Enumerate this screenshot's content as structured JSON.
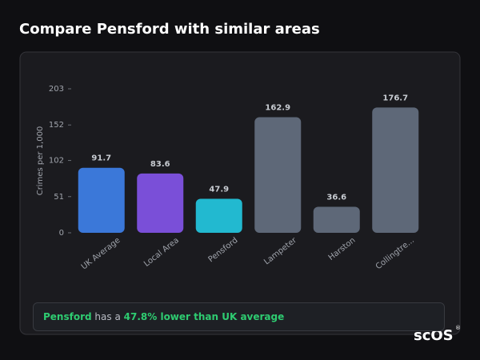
{
  "header": {
    "title": "Compare Pensford with similar areas"
  },
  "chart_data": {
    "type": "bar",
    "y_label": "Crimes per 1,000",
    "categories": [
      "UK Average",
      "Local Area",
      "Pensford",
      "Lampeter",
      "Harston",
      "Collingtre..."
    ],
    "values": [
      91.7,
      83.6,
      47.9,
      162.9,
      36.6,
      176.7
    ],
    "colors": [
      "#3b78d9",
      "#7a4fd8",
      "#22b9d0",
      "#5e6878",
      "#5e6878",
      "#5e6878"
    ],
    "ylim": [
      0,
      203
    ],
    "yticks": [
      0,
      51,
      102,
      152,
      203
    ],
    "grid": false
  },
  "summary": {
    "place": "Pensford",
    "text": "has a",
    "highlight": "47.8% lower than UK average"
  },
  "logo": {
    "text": "scOS",
    "mark": "®"
  }
}
